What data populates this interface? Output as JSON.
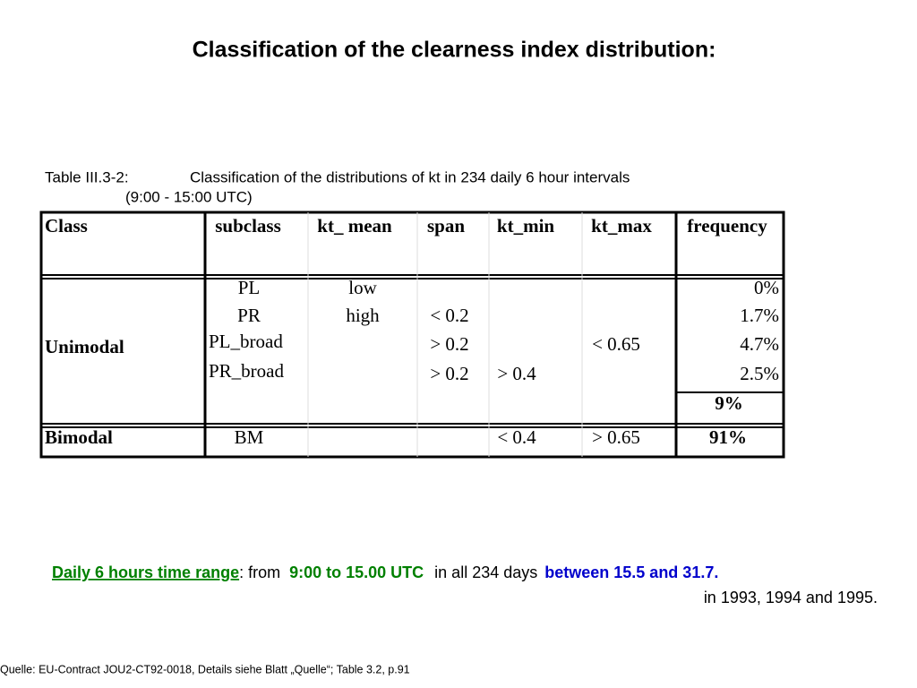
{
  "title": "Classification of the clearness index distribution:",
  "caption": {
    "label": "Table III.3-2:",
    "text": "Classification of the distributions of kt in 234 daily 6 hour intervals",
    "line2": "(9:00 - 15:00 UTC)"
  },
  "table": {
    "header": [
      "Class",
      "subclass",
      "kt_ mean",
      "span",
      "kt_min",
      "kt_max",
      "frequency"
    ],
    "groups": [
      {
        "class": "Unimodal",
        "rows": [
          {
            "subclass": "PL",
            "kt_mean": "low",
            "frequency": "0%"
          },
          {
            "subclass": "PR",
            "kt_mean": "high",
            "span": "< 0.2",
            "frequency": "1.7%"
          },
          {
            "subclass": "PL_broad",
            "span": "> 0.2",
            "kt_max": "< 0.65",
            "frequency": "4.7%"
          },
          {
            "subclass": "PR_broad",
            "span": "> 0.2",
            "kt_min": "> 0.4",
            "frequency": "2.5%"
          }
        ],
        "subtotal": "9%"
      },
      {
        "class": "Bimodal",
        "rows": [
          {
            "subclass": "BM",
            "kt_min": "< 0.4",
            "kt_max": "> 0.65",
            "frequency": "91%"
          }
        ]
      }
    ]
  },
  "note": {
    "label": "Daily 6 hours time range",
    "from": ": from",
    "time": "9:00 to 15.00 UTC",
    "days": "in all 234 days",
    "between": "between 15.5 and 31.7.",
    "years": "in 1993, 1994 and 1995."
  },
  "source": "Quelle: EU-Contract JOU2-CT92-0018, Details siehe Blatt „Quelle“; Table 3.2, p.91"
}
